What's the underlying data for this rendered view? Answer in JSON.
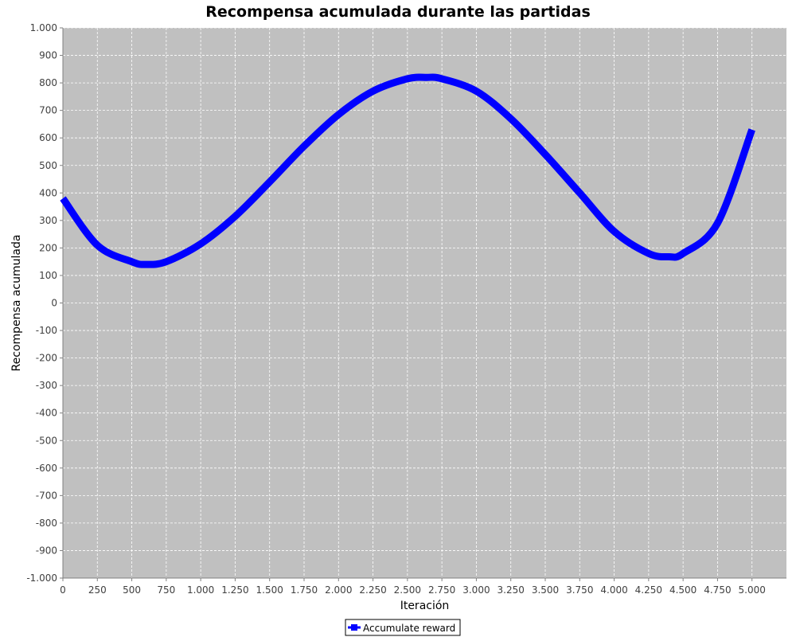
{
  "chart_data": {
    "type": "line",
    "title": "Recompensa acumulada durante las partidas",
    "xlabel": "Iteración",
    "ylabel": "Recompensa acumulada",
    "xlim": [
      0,
      5250
    ],
    "ylim": [
      -1000,
      1000
    ],
    "x_ticks": [
      0,
      250,
      500,
      750,
      1000,
      1250,
      1500,
      1750,
      2000,
      2250,
      2500,
      2750,
      3000,
      3250,
      3500,
      3750,
      4000,
      4250,
      4500,
      4750,
      5000
    ],
    "x_tick_labels": [
      "0",
      "250",
      "500",
      "750",
      "1.000",
      "1.250",
      "1.500",
      "1.750",
      "2.000",
      "2.250",
      "2.500",
      "2.750",
      "3.000",
      "3.250",
      "3.500",
      "3.750",
      "4.000",
      "4.250",
      "4.500",
      "4.750",
      "5.000"
    ],
    "y_ticks": [
      1000,
      900,
      800,
      700,
      600,
      500,
      400,
      300,
      200,
      100,
      0,
      -100,
      -200,
      -300,
      -400,
      -500,
      -600,
      -700,
      -800,
      -900,
      -1000
    ],
    "y_tick_labels": [
      "1.000",
      "900",
      "800",
      "700",
      "600",
      "500",
      "400",
      "300",
      "200",
      "100",
      "0",
      "-100",
      "-200",
      "-300",
      "-400",
      "-500",
      "-600",
      "-700",
      "-800",
      "-900",
      "-1.000"
    ],
    "grid": true,
    "legend_position": "bottom-center",
    "plot_background": "#c0c0c0",
    "series": [
      {
        "name": "Accumulate reward",
        "color": "#0000ff",
        "x": [
          0,
          250,
          500,
          600,
          750,
          1000,
          1250,
          1500,
          1750,
          2000,
          2250,
          2500,
          2640,
          2750,
          3000,
          3250,
          3500,
          3750,
          4000,
          4250,
          4400,
          4500,
          4750,
          5000
        ],
        "y": [
          380,
          210,
          150,
          140,
          150,
          215,
          315,
          440,
          570,
          685,
          770,
          815,
          820,
          815,
          770,
          670,
          540,
          400,
          260,
          180,
          168,
          180,
          290,
          630
        ]
      }
    ]
  }
}
